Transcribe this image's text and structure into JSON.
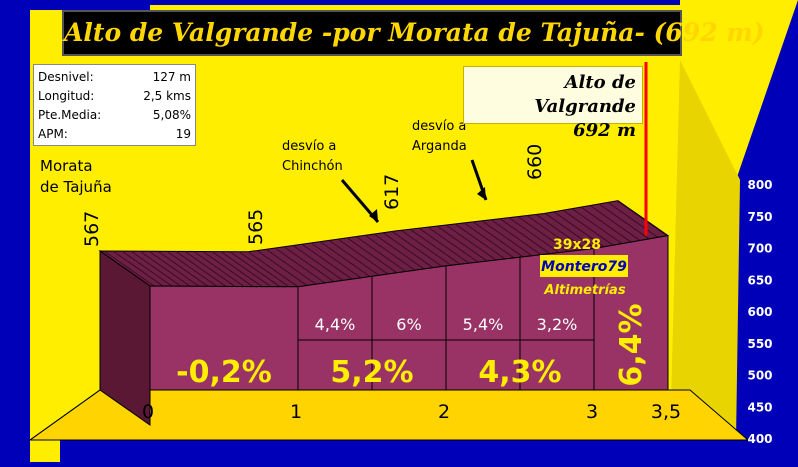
{
  "title": "Alto de Valgrande -por Morata de Tajuña- (692 m)",
  "stats": [
    {
      "label": "Desnivel:",
      "value": "127 m"
    },
    {
      "label": "Longitud:",
      "value": "2,5 kms"
    },
    {
      "label": "Pte.Media:",
      "value": "5,08%"
    },
    {
      "label": "APM:",
      "value": "19"
    }
  ],
  "summit": {
    "name": "Alto de Valgrande",
    "altitude": "692 m"
  },
  "start": {
    "line1": "Morata",
    "line2": "de Tajuña"
  },
  "watermark": {
    "top": "39x28",
    "name": "Montero79",
    "sub": "Altimetrías"
  },
  "colors": {
    "background": "#0000b8",
    "wall": "#ffee00",
    "profile_front": "#993366",
    "profile_top": "#6e1f45",
    "summit_line": "#ff0000",
    "title_text": "#ffd700"
  },
  "chart_data": {
    "type": "area",
    "title": "Alto de Valgrande -por Morata de Tajuña- (692 m)",
    "x_unit": "km",
    "y_unit": "m",
    "ylim": [
      400,
      800
    ],
    "yticks": [
      400,
      450,
      500,
      550,
      600,
      650,
      700,
      750,
      800
    ],
    "x_ticks": [
      {
        "km": 0,
        "label": "0"
      },
      {
        "km": 1,
        "label": "1"
      },
      {
        "km": 2,
        "label": "2"
      },
      {
        "km": 3,
        "label": "3"
      },
      {
        "km": 3.5,
        "label": "3,5"
      }
    ],
    "profile": [
      {
        "km": 0,
        "alt": 567
      },
      {
        "km": 1,
        "alt": 565
      },
      {
        "km": 2,
        "alt": 617
      },
      {
        "km": 3,
        "alt": 660
      },
      {
        "km": 3.5,
        "alt": 692
      }
    ],
    "altitude_labels": [
      {
        "km": 0,
        "label": "567"
      },
      {
        "km": 1,
        "label": "565"
      },
      {
        "km": 2,
        "label": "617"
      },
      {
        "km": 3,
        "label": "660"
      }
    ],
    "segment_gradients": [
      {
        "from": 0,
        "to": 1,
        "label": "-0,2%"
      },
      {
        "from": 1,
        "to": 2,
        "label": "5,2%"
      },
      {
        "from": 2,
        "to": 3,
        "label": "4,3%"
      },
      {
        "from": 3,
        "to": 3.5,
        "label": "6,4%"
      }
    ],
    "half_km_gradients": [
      {
        "from": 1,
        "to": 1.5,
        "label": "4,4%"
      },
      {
        "from": 1.5,
        "to": 2,
        "label": "6%"
      },
      {
        "from": 2,
        "to": 2.5,
        "label": "5,4%"
      },
      {
        "from": 2.5,
        "to": 3,
        "label": "3,2%"
      }
    ],
    "annotations": [
      {
        "km": 1.55,
        "label": [
          "desvío a",
          "Chinchón"
        ]
      },
      {
        "km": 2.3,
        "label": [
          "desvío a",
          "Arganda"
        ]
      }
    ]
  }
}
